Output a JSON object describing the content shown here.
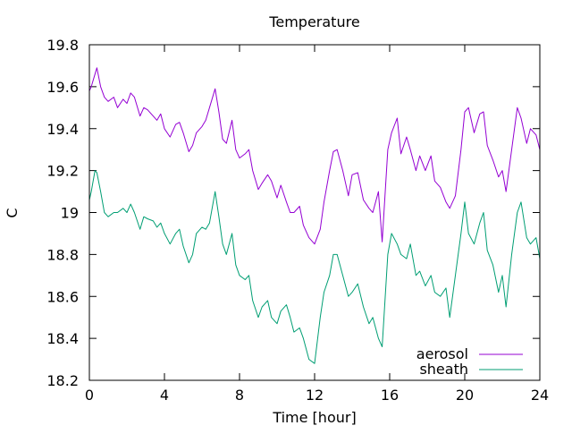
{
  "chart_data": {
    "type": "line",
    "title": "Temperature",
    "xlabel": "Time [hour]",
    "ylabel": "C",
    "xlim": [
      0,
      24
    ],
    "ylim": [
      18.2,
      19.8
    ],
    "xticks": [
      0,
      4,
      8,
      12,
      16,
      20,
      24
    ],
    "yticks": [
      18.2,
      18.4,
      18.6,
      18.8,
      19,
      19.2,
      19.4,
      19.6,
      19.8
    ],
    "xtick_labels": [
      "0",
      "4",
      "8",
      "12",
      "16",
      "20",
      "24"
    ],
    "ytick_labels": [
      "18.2",
      "18.4",
      "18.6",
      "18.8",
      "19",
      "19.2",
      "19.4",
      "19.6",
      "19.8"
    ],
    "grid": false,
    "legend_position": "bottom-right",
    "series": [
      {
        "name": "aerosol",
        "color": "#9400d3",
        "x": [
          0,
          0.1,
          0.3,
          0.4,
          0.6,
          0.8,
          1.0,
          1.3,
          1.5,
          1.8,
          2.0,
          2.2,
          2.4,
          2.7,
          2.9,
          3.1,
          3.4,
          3.6,
          3.8,
          4.0,
          4.3,
          4.6,
          4.8,
          5.0,
          5.3,
          5.5,
          5.7,
          6.0,
          6.2,
          6.4,
          6.7,
          6.9,
          7.1,
          7.3,
          7.6,
          7.8,
          8.0,
          8.3,
          8.5,
          8.7,
          9.0,
          9.2,
          9.5,
          9.7,
          10.0,
          10.2,
          10.5,
          10.7,
          10.9,
          11.2,
          11.4,
          11.7,
          12.0,
          12.3,
          12.5,
          12.8,
          13.0,
          13.2,
          13.5,
          13.8,
          14.0,
          14.3,
          14.6,
          14.9,
          15.1,
          15.4,
          15.6,
          15.9,
          16.1,
          16.4,
          16.6,
          16.9,
          17.1,
          17.4,
          17.6,
          17.9,
          18.2,
          18.4,
          18.7,
          19.0,
          19.2,
          19.5,
          19.8,
          20.0,
          20.2,
          20.5,
          20.8,
          21.0,
          21.2,
          21.5,
          21.8,
          22.0,
          22.2,
          22.5,
          22.8,
          23.0,
          23.3,
          23.5,
          23.8,
          24.0
        ],
        "y": [
          19.58,
          19.6,
          19.66,
          19.69,
          19.6,
          19.55,
          19.53,
          19.55,
          19.5,
          19.54,
          19.52,
          19.57,
          19.55,
          19.46,
          19.5,
          19.49,
          19.46,
          19.44,
          19.47,
          19.4,
          19.36,
          19.42,
          19.43,
          19.38,
          19.29,
          19.32,
          19.38,
          19.41,
          19.44,
          19.5,
          19.59,
          19.48,
          19.35,
          19.33,
          19.44,
          19.3,
          19.26,
          19.28,
          19.3,
          19.2,
          19.11,
          19.14,
          19.18,
          19.15,
          19.07,
          19.13,
          19.05,
          19.0,
          19.0,
          19.03,
          18.94,
          18.88,
          18.85,
          18.92,
          19.05,
          19.2,
          19.29,
          19.3,
          19.2,
          19.08,
          19.18,
          19.19,
          19.06,
          19.02,
          19.0,
          19.1,
          18.86,
          19.3,
          19.38,
          19.45,
          19.28,
          19.36,
          19.3,
          19.2,
          19.27,
          19.2,
          19.27,
          19.15,
          19.12,
          19.05,
          19.02,
          19.08,
          19.3,
          19.48,
          19.5,
          19.38,
          19.47,
          19.48,
          19.32,
          19.25,
          19.17,
          19.2,
          19.1,
          19.3,
          19.5,
          19.45,
          19.33,
          19.4,
          19.37,
          19.3
        ]
      },
      {
        "name": "sheath",
        "color": "#009e73",
        "x": [
          0,
          0.1,
          0.3,
          0.4,
          0.6,
          0.8,
          1.0,
          1.3,
          1.5,
          1.8,
          2.0,
          2.2,
          2.4,
          2.7,
          2.9,
          3.1,
          3.4,
          3.6,
          3.8,
          4.0,
          4.3,
          4.6,
          4.8,
          5.0,
          5.3,
          5.5,
          5.7,
          6.0,
          6.2,
          6.4,
          6.7,
          6.9,
          7.1,
          7.3,
          7.6,
          7.8,
          8.0,
          8.3,
          8.5,
          8.7,
          9.0,
          9.2,
          9.5,
          9.7,
          10.0,
          10.2,
          10.5,
          10.7,
          10.9,
          11.2,
          11.4,
          11.7,
          12.0,
          12.3,
          12.5,
          12.8,
          13.0,
          13.2,
          13.5,
          13.8,
          14.0,
          14.3,
          14.6,
          14.9,
          15.1,
          15.4,
          15.6,
          15.9,
          16.1,
          16.4,
          16.6,
          16.9,
          17.1,
          17.4,
          17.6,
          17.9,
          18.2,
          18.4,
          18.7,
          19.0,
          19.2,
          19.5,
          19.8,
          20.0,
          20.2,
          20.5,
          20.8,
          21.0,
          21.2,
          21.5,
          21.8,
          22.0,
          22.2,
          22.5,
          22.8,
          23.0,
          23.3,
          23.5,
          23.8,
          24.0
        ],
        "y": [
          19.06,
          19.1,
          19.2,
          19.19,
          19.1,
          19.0,
          18.98,
          19.0,
          19.0,
          19.02,
          19.0,
          19.04,
          19.0,
          18.92,
          18.98,
          18.97,
          18.96,
          18.93,
          18.95,
          18.9,
          18.85,
          18.9,
          18.92,
          18.84,
          18.76,
          18.8,
          18.9,
          18.93,
          18.92,
          18.95,
          19.1,
          18.98,
          18.85,
          18.8,
          18.9,
          18.75,
          18.7,
          18.68,
          18.7,
          18.58,
          18.5,
          18.55,
          18.58,
          18.5,
          18.47,
          18.53,
          18.56,
          18.5,
          18.43,
          18.45,
          18.4,
          18.3,
          18.28,
          18.5,
          18.62,
          18.7,
          18.8,
          18.8,
          18.7,
          18.6,
          18.62,
          18.66,
          18.55,
          18.47,
          18.5,
          18.4,
          18.36,
          18.8,
          18.9,
          18.85,
          18.8,
          18.78,
          18.85,
          18.7,
          18.72,
          18.65,
          18.7,
          18.62,
          18.6,
          18.64,
          18.5,
          18.7,
          18.9,
          19.05,
          18.9,
          18.85,
          18.95,
          19.0,
          18.82,
          18.75,
          18.62,
          18.7,
          18.55,
          18.8,
          19.0,
          19.05,
          18.88,
          18.85,
          18.88,
          18.78
        ]
      }
    ]
  }
}
